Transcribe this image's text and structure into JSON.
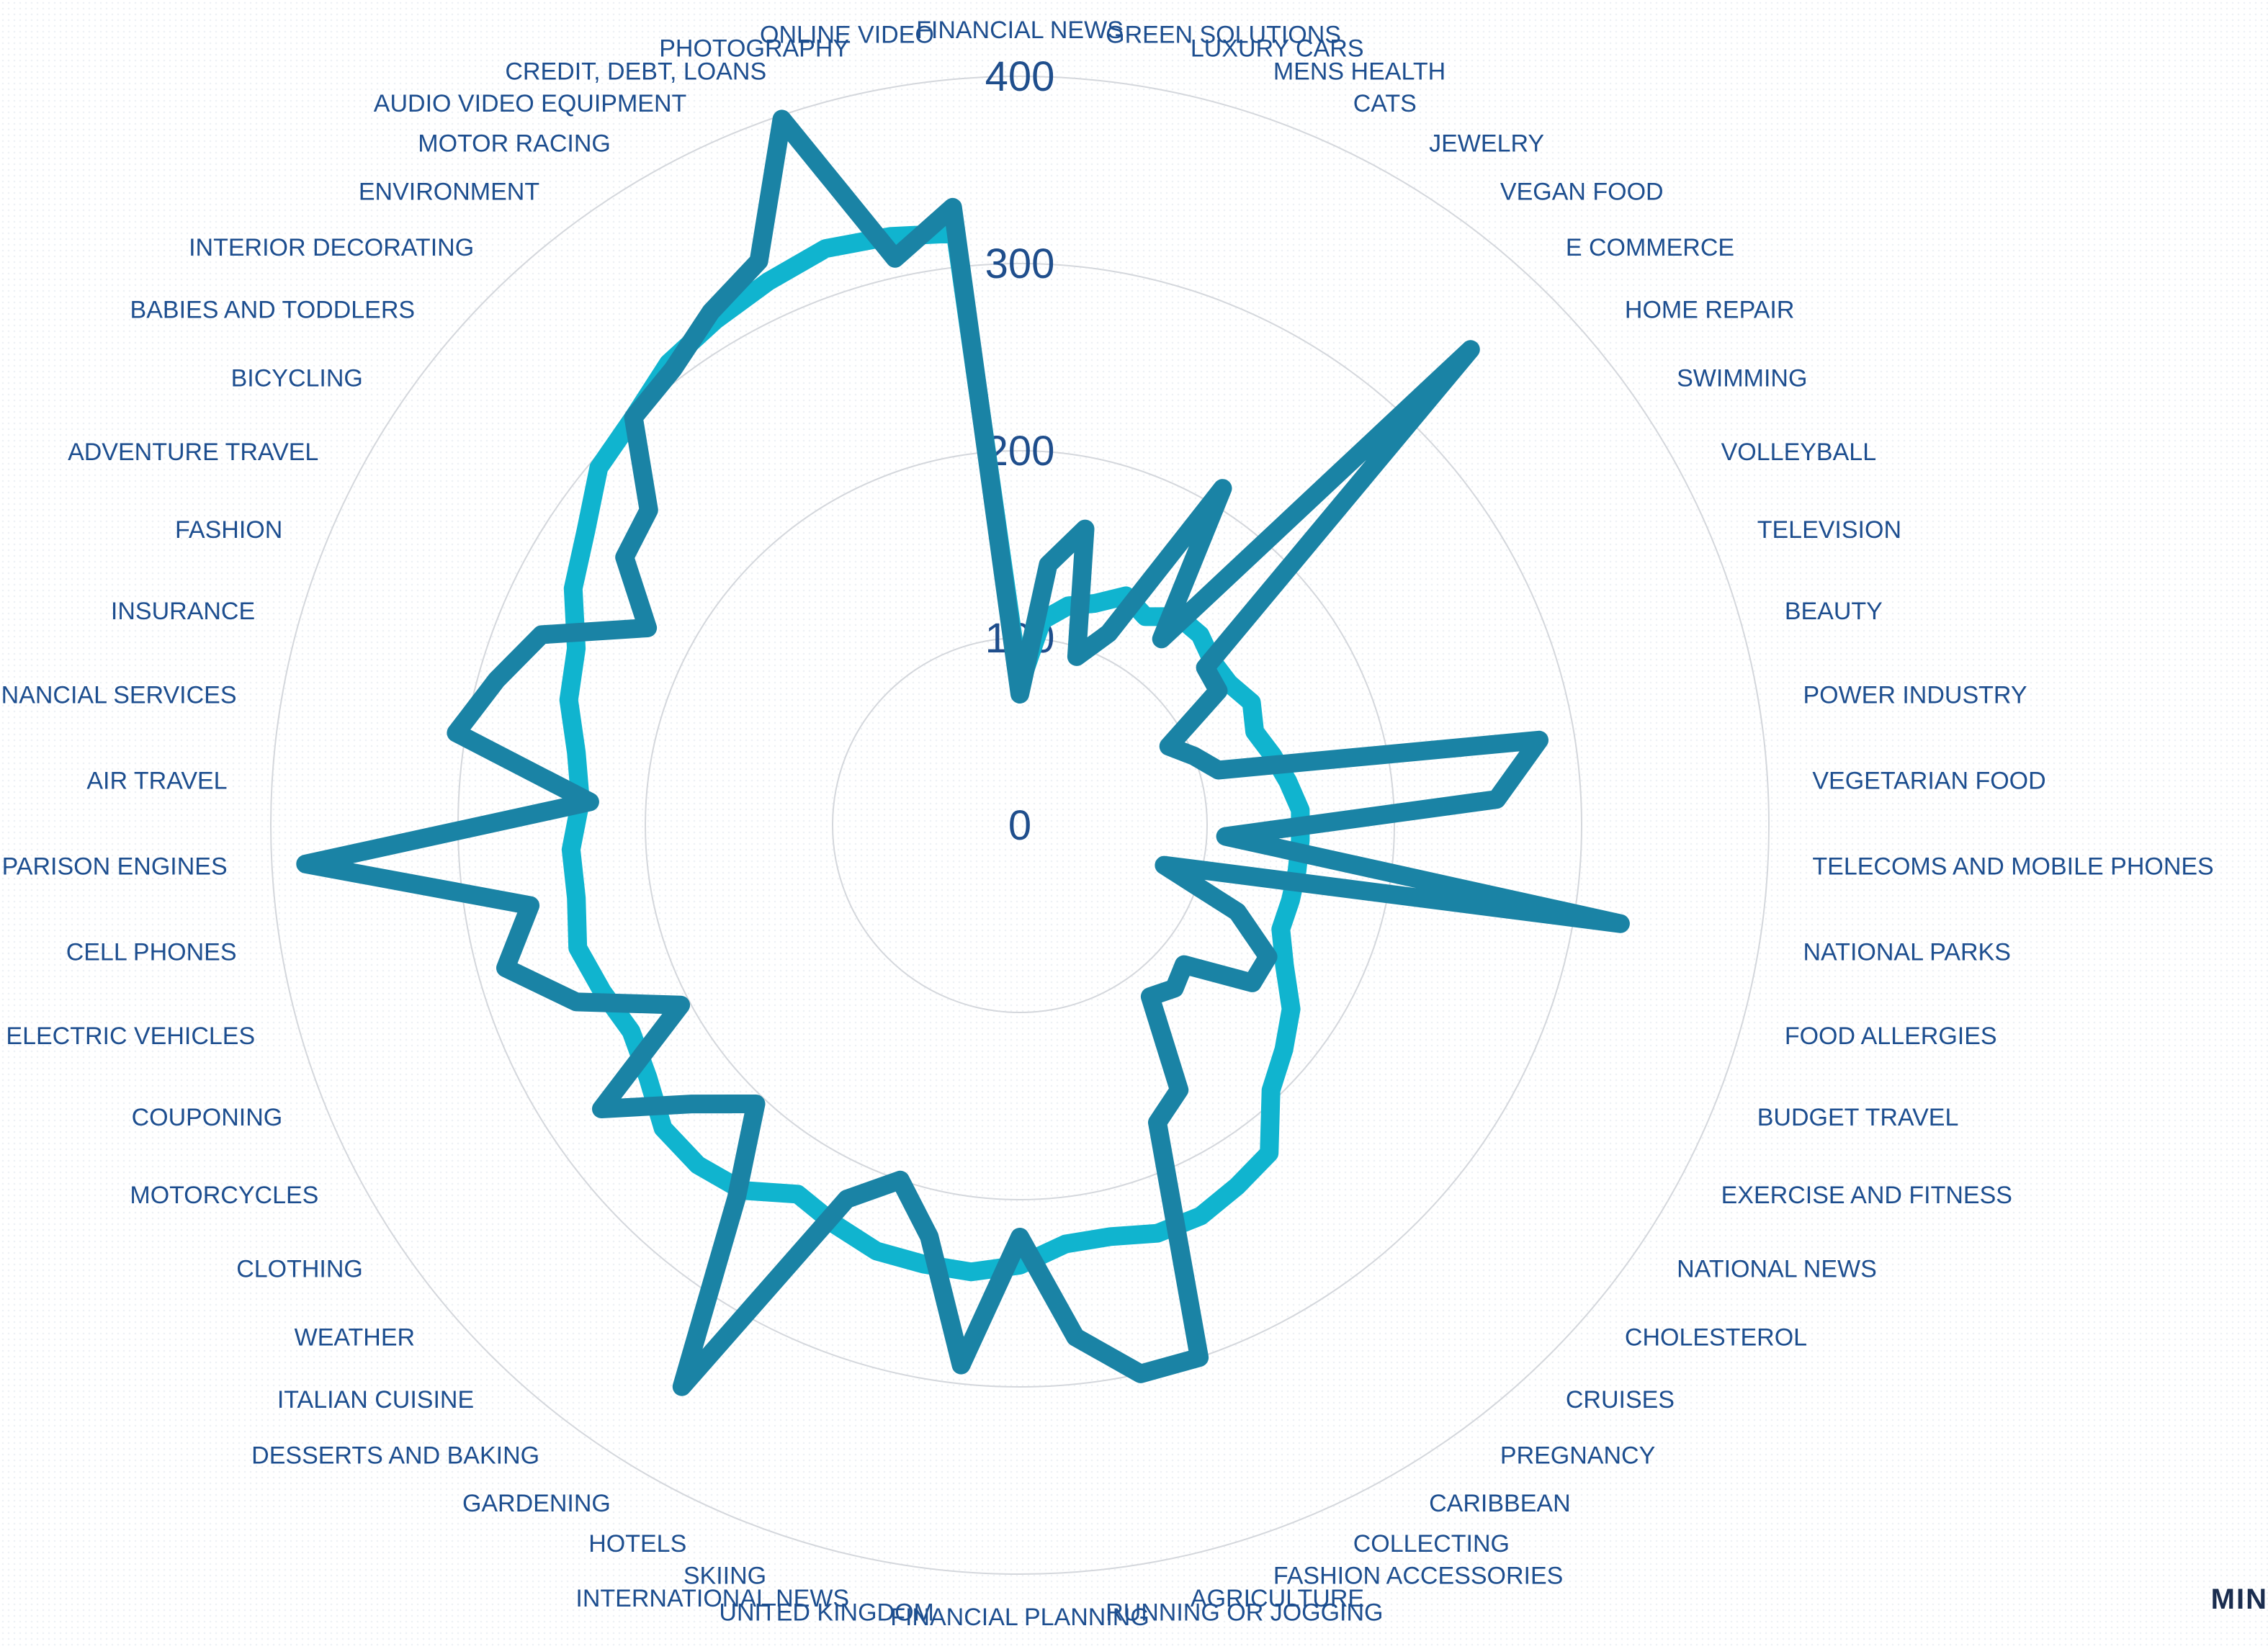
{
  "brand": {
    "text": "MIN"
  },
  "chart_data": {
    "type": "radar",
    "rmax": 400,
    "ticks": [
      0,
      100,
      200,
      300,
      400
    ],
    "grid": true,
    "categories": [
      "FINANCIAL NEWS",
      "GREEN SOLUTIONS",
      "LUXURY CARS",
      "MENS HEALTH",
      "CATS",
      "JEWELRY",
      "VEGAN FOOD",
      "E COMMERCE",
      "HOME REPAIR",
      "SWIMMING",
      "VOLLEYBALL",
      "TELEVISION",
      "BEAUTY",
      "POWER INDUSTRY",
      "VEGETARIAN FOOD",
      "TELECOMS AND MOBILE PHONES",
      "NATIONAL PARKS",
      "FOOD ALLERGIES",
      "BUDGET TRAVEL",
      "EXERCISE AND FITNESS",
      "NATIONAL NEWS",
      "CHOLESTEROL",
      "CRUISES",
      "PREGNANCY",
      "CARIBBEAN",
      "COLLECTING",
      "FASHION ACCESSORIES",
      "AGRICULTURE",
      "RUNNING OR JOGGING",
      "FINANCIAL PLANNING",
      "UNITED KINGDOM",
      "INTERNATIONAL NEWS",
      "SKIING",
      "HOTELS",
      "GARDENING",
      "DESSERTS AND BAKING",
      "ITALIAN CUISINE",
      "WEATHER",
      "CLOTHING",
      "MOTORCYCLES",
      "COUPONING",
      "ELECTRIC VEHICLES",
      "CELL PHONES",
      "COMPARISON ENGINES",
      "AIR TRAVEL",
      "FINANCIAL SERVICES",
      "INSURANCE",
      "FASHION",
      "ADVENTURE TRAVEL",
      "BICYCLING",
      "BABIES AND TODDLERS",
      "INTERIOR DECORATING",
      "ENVIRONMENT",
      "MOTOR RACING",
      "AUDIO VIDEO EQUIPMENT",
      "CREDIT, DEBT, LOANS",
      "PHOTOGRAPHY",
      "ONLINE VIDEO"
    ],
    "series": [
      {
        "name": "",
        "color": "#10b4cf",
        "values": [
          75,
          110,
          120,
          125,
          135,
          130,
          140,
          140,
          135,
          135,
          140,
          135,
          140,
          145,
          150,
          150,
          150,
          150,
          150,
          160,
          175,
          185,
          195,
          220,
          225,
          230,
          230,
          225,
          225,
          235,
          240,
          240,
          240,
          235,
          230,
          245,
          250,
          250,
          240,
          235,
          240,
          245,
          240,
          240,
          235,
          240,
          250,
          255,
          270,
          280,
          295,
          300,
          310,
          315,
          320,
          325,
          322,
          318
        ]
      },
      {
        "name": "",
        "color": "#1a83a5",
        "values": [
          70,
          140,
          162,
          95,
          113,
          210,
          125,
          350,
          130,
          128,
          90,
          100,
          110,
          281,
          255,
          110,
          325,
          80,
          125,
          150,
          150,
          115,
          120,
          115,
          165,
          175,
          300,
          300,
          275,
          220,
          290,
          225,
          200,
          220,
          350,
          250,
          205,
          230,
          270,
          205,
          255,
          285,
          265,
          382,
          230,
          305,
          290,
          275,
          225,
          255,
          260,
          300,
          306,
          320,
          332,
          398,
          310,
          332
        ]
      }
    ]
  }
}
